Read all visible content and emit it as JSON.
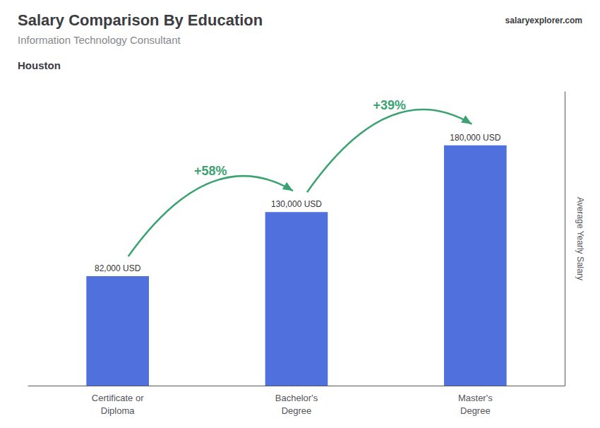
{
  "chart_data": {
    "type": "bar",
    "title": "Salary Comparison By Education",
    "subtitle": "Information Technology Consultant",
    "location": "Houston",
    "source": "salaryexplorer.com",
    "y_label": "Average Yearly Salary",
    "categories": [
      "Certificate or\nDiploma",
      "Bachelor's\nDegree",
      "Master's\nDegree"
    ],
    "values": [
      82000,
      130000,
      180000
    ],
    "value_labels": [
      "82,000 USD",
      "130,000 USD",
      "180,000 USD"
    ],
    "data_labels": true,
    "annotations": [
      "+58%",
      "+39%"
    ],
    "ylim": [
      0,
      220000
    ],
    "tick_labels": "x",
    "grid": false
  }
}
